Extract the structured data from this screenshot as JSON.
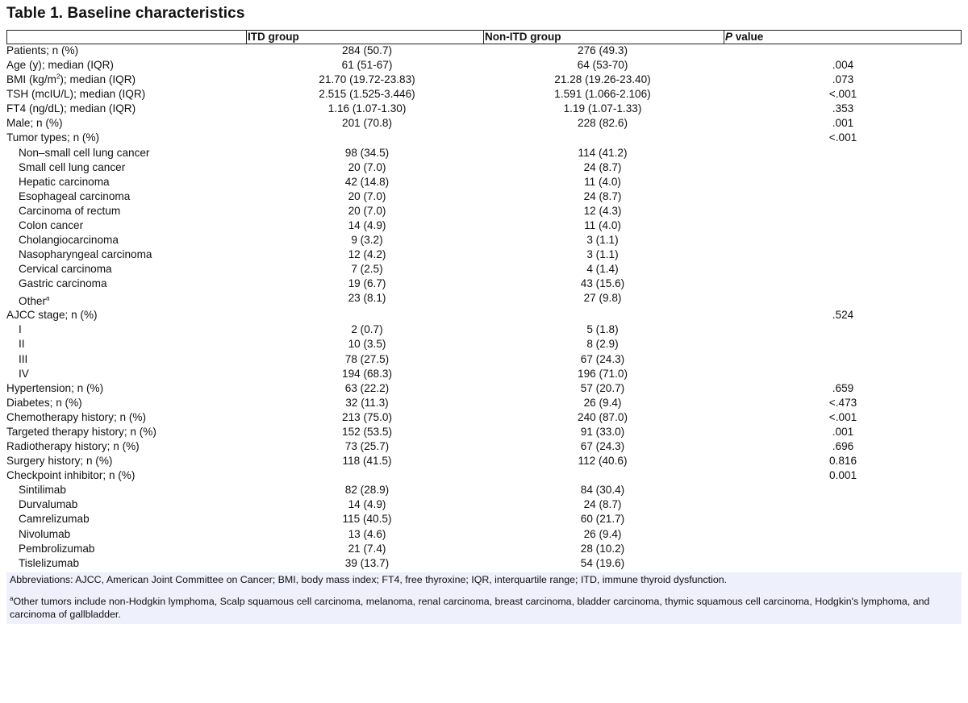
{
  "title": "Table 1. Baseline characteristics",
  "headers": {
    "itd": "ITD group",
    "non_itd": "Non-ITD group",
    "p_italic": "P",
    "p_rest": " value"
  },
  "rows": [
    {
      "label": "Patients; n (%)",
      "itd": "284 (50.7)",
      "non": "276 (49.3)",
      "p": ""
    },
    {
      "label": "Age (y); median (IQR)",
      "itd": "61 (51-67)",
      "non": "64 (53-70)",
      "p": ".004"
    },
    {
      "label": "BMI (kg/m",
      "sup": "2",
      "label_after": "); median (IQR)",
      "itd": "21.70 (19.72-23.83)",
      "non": "21.28 (19.26-23.40)",
      "p": ".073"
    },
    {
      "label": "TSH (mcIU/L); median (IQR)",
      "itd": "2.515 (1.525-3.446)",
      "non": "1.591 (1.066-2.106)",
      "p": "<.001"
    },
    {
      "label": "FT4 (ng/dL); median (IQR)",
      "itd": "1.16 (1.07-1.30)",
      "non": "1.19 (1.07-1.33)",
      "p": ".353"
    },
    {
      "label": "Male; n (%)",
      "itd": "201 (70.8)",
      "non": "228 (82.6)",
      "p": ".001"
    },
    {
      "label": "Tumor types; n (%)",
      "itd": "",
      "non": "",
      "p": "<.001"
    },
    {
      "label": "Non–small cell lung cancer",
      "indent": true,
      "itd": "98 (34.5)",
      "non": "114 (41.2)",
      "p": ""
    },
    {
      "label": "Small cell lung cancer",
      "indent": true,
      "itd": "20 (7.0)",
      "non": "24 (8.7)",
      "p": ""
    },
    {
      "label": "Hepatic carcinoma",
      "indent": true,
      "itd": "42 (14.8)",
      "non": "11 (4.0)",
      "p": ""
    },
    {
      "label": "Esophageal carcinoma",
      "indent": true,
      "itd": "20 (7.0)",
      "non": "24 (8.7)",
      "p": ""
    },
    {
      "label": "Carcinoma of rectum",
      "indent": true,
      "itd": "20 (7.0)",
      "non": "12 (4.3)",
      "p": ""
    },
    {
      "label": "Colon cancer",
      "indent": true,
      "itd": "14 (4.9)",
      "non": "11 (4.0)",
      "p": ""
    },
    {
      "label": "Cholangiocarcinoma",
      "indent": true,
      "itd": "9 (3.2)",
      "non": "3 (1.1)",
      "p": ""
    },
    {
      "label": "Nasopharyngeal carcinoma",
      "indent": true,
      "itd": "12 (4.2)",
      "non": "3 (1.1)",
      "p": ""
    },
    {
      "label": "Cervical carcinoma",
      "indent": true,
      "itd": "7 (2.5)",
      "non": "4 (1.4)",
      "p": ""
    },
    {
      "label": "Gastric carcinoma",
      "indent": true,
      "itd": "19 (6.7)",
      "non": "43 (15.6)",
      "p": ""
    },
    {
      "label": "Other",
      "sup": "a",
      "label_after": "",
      "indent": true,
      "tall": true,
      "itd": "23 (8.1)",
      "non": "27 (9.8)",
      "p": ""
    },
    {
      "label": "AJCC stage; n (%)",
      "itd": "",
      "non": "",
      "p": ".524"
    },
    {
      "label": "I",
      "indent": true,
      "itd": "2 (0.7)",
      "non": "5 (1.8)",
      "p": ""
    },
    {
      "label": "II",
      "indent": true,
      "itd": "10 (3.5)",
      "non": "8 (2.9)",
      "p": ""
    },
    {
      "label": "III",
      "indent": true,
      "itd": "78 (27.5)",
      "non": "67 (24.3)",
      "p": ""
    },
    {
      "label": "IV",
      "indent": true,
      "itd": "194 (68.3)",
      "non": "196 (71.0)",
      "p": ""
    },
    {
      "label": "Hypertension; n (%)",
      "itd": "63 (22.2)",
      "non": "57 (20.7)",
      "p": ".659"
    },
    {
      "label": "Diabetes; n (%)",
      "itd": "32 (11.3)",
      "non": "26 (9.4)",
      "p": "<.473"
    },
    {
      "label": "Chemotherapy history; n (%)",
      "itd": "213 (75.0)",
      "non": "240 (87.0)",
      "p": "<.001"
    },
    {
      "label": "Targeted therapy history; n (%)",
      "itd": "152 (53.5)",
      "non": "91 (33.0)",
      "p": ".001"
    },
    {
      "label": "Radiotherapy history; n (%)",
      "itd": "73 (25.7)",
      "non": "67 (24.3)",
      "p": ".696"
    },
    {
      "label": "Surgery history; n (%)",
      "itd": "118 (41.5)",
      "non": "112 (40.6)",
      "p": "0.816"
    },
    {
      "label": "Checkpoint inhibitor; n (%)",
      "itd": "",
      "non": "",
      "p": "0.001"
    },
    {
      "label": "Sintilimab",
      "indent": true,
      "itd": "82 (28.9)",
      "non": "84 (30.4)",
      "p": ""
    },
    {
      "label": "Durvalumab",
      "indent": true,
      "itd": "14 (4.9)",
      "non": "24 (8.7)",
      "p": ""
    },
    {
      "label": "Camrelizumab",
      "indent": true,
      "itd": "115 (40.5)",
      "non": "60 (21.7)",
      "p": ""
    },
    {
      "label": "Nivolumab",
      "indent": true,
      "itd": "13 (4.6)",
      "non": "26 (9.4)",
      "p": ""
    },
    {
      "label": "Pembrolizumab",
      "indent": true,
      "itd": "21 (7.4)",
      "non": "28 (10.2)",
      "p": ""
    },
    {
      "label": "Tislelizumab",
      "indent": true,
      "itd": "39 (13.7)",
      "non": "54 (19.6)",
      "p": ""
    }
  ],
  "footnotes": {
    "abbreviations": "Abbreviations: AJCC, American Joint Committee on Cancer; BMI, body mass index; FT4, free thyroxine; IQR, interquartile range; ITD, immune thyroid dysfunction.",
    "other_sup": "a",
    "other": "Other tumors include non-Hodgkin lymphoma, Scalp squamous cell carcinoma, melanoma, renal carcinoma, breast carcinoma, bladder carcinoma, thymic squamous cell carcinoma, Hodgkin's lymphoma, and carcinoma of gallbladder."
  }
}
